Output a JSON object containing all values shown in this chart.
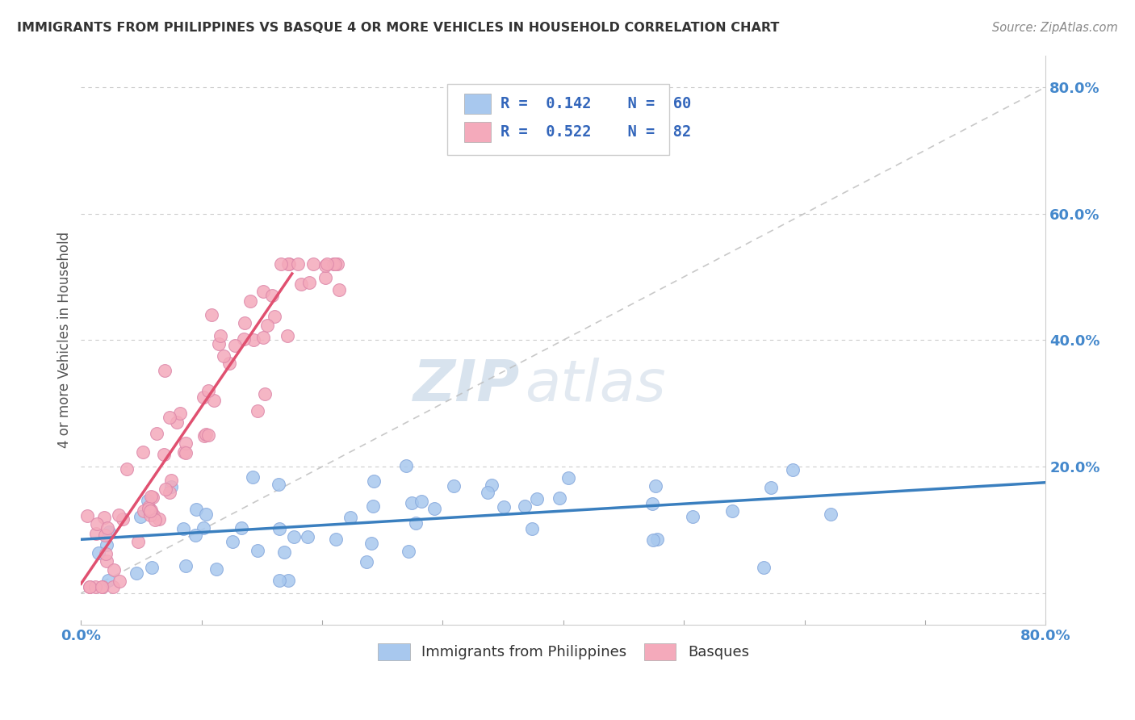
{
  "title": "IMMIGRANTS FROM PHILIPPINES VS BASQUE 4 OR MORE VEHICLES IN HOUSEHOLD CORRELATION CHART",
  "source": "Source: ZipAtlas.com",
  "ylabel": "4 or more Vehicles in Household",
  "xlim": [
    0.0,
    0.8
  ],
  "ylim": [
    -0.05,
    0.85
  ],
  "legend_label1": "Immigrants from Philippines",
  "legend_label2": "Basques",
  "color_blue": "#A8C8EE",
  "color_pink": "#F4AABB",
  "color_blue_line": "#3A7FBF",
  "color_pink_line": "#E05070",
  "color_diagonal": "#BBBBBB",
  "watermark_zip": "ZIP",
  "watermark_atlas": "atlas",
  "blue_line_x0": 0.0,
  "blue_line_y0": 0.085,
  "blue_line_x1": 0.8,
  "blue_line_y1": 0.175,
  "pink_line_x0": 0.0,
  "pink_line_y0": 0.015,
  "pink_line_x1": 0.175,
  "pink_line_y1": 0.505
}
